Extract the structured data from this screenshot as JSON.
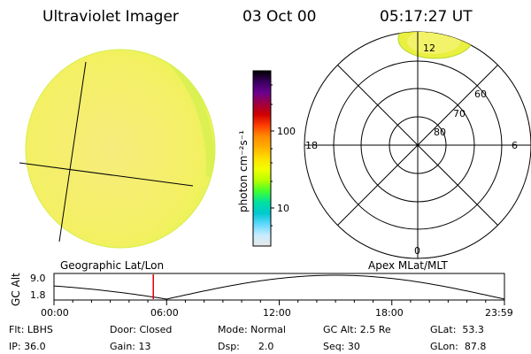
{
  "header": {
    "title": "Ultraviolet Imager",
    "date": "03 Oct 00",
    "time": "05:17:27 UT"
  },
  "colorbar": {
    "unit_label": "photon cm⁻²s⁻¹",
    "ticks": [
      "100",
      "10"
    ],
    "colors": [
      "#000000",
      "#3a0060",
      "#6a0090",
      "#a00040",
      "#d00000",
      "#ff4000",
      "#ff8c00",
      "#ffb000",
      "#ffe000",
      "#f2ff00",
      "#b8ff00",
      "#40ff30",
      "#00e0a0",
      "#00c8d0",
      "#60d8ff",
      "#c8ecff",
      "#e8e8e8"
    ]
  },
  "polar_plot": {
    "lat_labels": [
      "80",
      "70",
      "60"
    ],
    "mlt_labels": [
      "12",
      "18",
      "6",
      "0"
    ]
  },
  "timeline": {
    "left_label": "Geographic Lat/Lon",
    "right_label": "Apex MLat/MLT",
    "axis_title": "GC Alt",
    "y_max": "9.0",
    "y_min": "1.8",
    "time_labels": [
      "00:00",
      "06:00",
      "12:00",
      "18:00",
      "23:59"
    ],
    "marker_time": "05:17:27"
  },
  "status": {
    "flt": "Flt: LBHS",
    "ip": "IP: 36.0",
    "door": "Door: Closed",
    "gain": "Gain: 13",
    "mode": "Mode: Normal",
    "dsp": "Dsp:      2.0",
    "gc_alt": "GC Alt: 2.5 Re",
    "seq": "Seq: 30",
    "glat": "GLat:  53.3",
    "glon": "GLon:  87.8"
  }
}
